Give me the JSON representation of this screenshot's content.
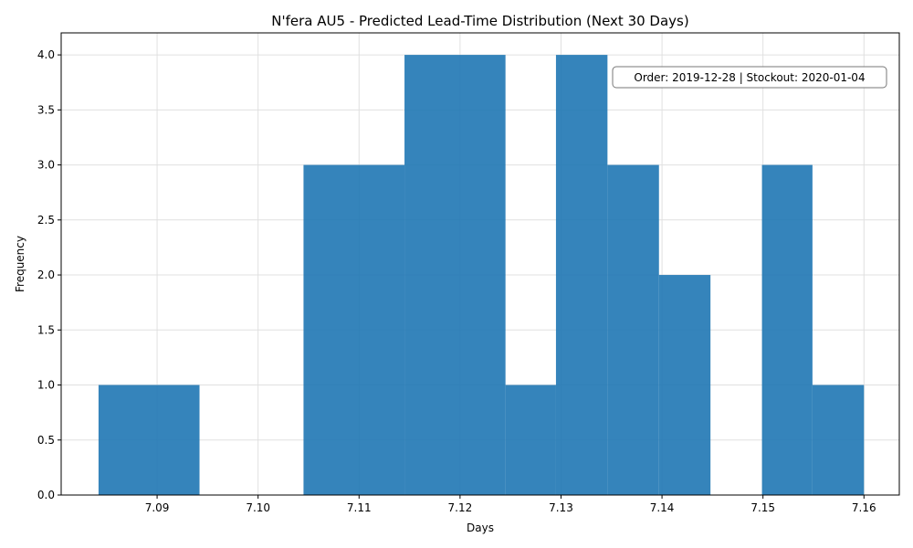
{
  "chart_data": {
    "type": "bar",
    "title": "N'fera AU5 - Predicted Lead-Time Distribution (Next 30 Days)",
    "xlabel": "Days",
    "ylabel": "Frequency",
    "xlim": [
      7.0805,
      7.1635
    ],
    "ylim": [
      0,
      4.2
    ],
    "x_ticks": [
      "7.09",
      "7.10",
      "7.11",
      "7.12",
      "7.13",
      "7.14",
      "7.15",
      "7.16"
    ],
    "y_ticks": [
      "0.0",
      "0.5",
      "1.0",
      "1.5",
      "2.0",
      "2.5",
      "3.0",
      "3.5",
      "4.0"
    ],
    "grid": true,
    "bar_color": "#1f77b4",
    "bins": [
      {
        "x0": 7.0842,
        "x1": 7.0942,
        "count": 1
      },
      {
        "x0": 7.1045,
        "x1": 7.1145,
        "count": 3
      },
      {
        "x0": 7.1145,
        "x1": 7.1245,
        "count": 4
      },
      {
        "x0": 7.1245,
        "x1": 7.1295,
        "count": 1
      },
      {
        "x0": 7.1295,
        "x1": 7.1346,
        "count": 4
      },
      {
        "x0": 7.1346,
        "x1": 7.1397,
        "count": 3
      },
      {
        "x0": 7.1397,
        "x1": 7.1448,
        "count": 2
      },
      {
        "x0": 7.1499,
        "x1": 7.1549,
        "count": 3
      },
      {
        "x0": 7.1549,
        "x1": 7.16,
        "count": 1
      }
    ],
    "annotation": "Order: 2019-12-28 | Stockout: 2020-01-04"
  }
}
